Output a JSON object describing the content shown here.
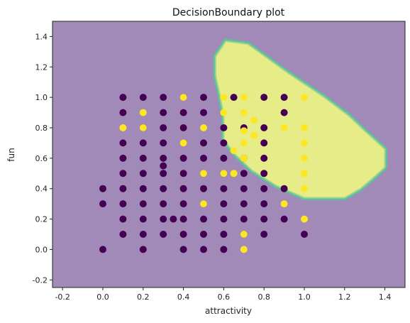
{
  "chart_data": {
    "type": "scatter",
    "title": "DecisionBoundary plot",
    "xlabel": "attractivity",
    "ylabel": "fun",
    "xlim": [
      -0.25,
      1.5
    ],
    "ylim": [
      -0.25,
      1.5
    ],
    "xticks": [
      "-0.2",
      "0.0",
      "0.2",
      "0.4",
      "0.6",
      "0.8",
      "1.0",
      "1.2",
      "1.4"
    ],
    "yticks": [
      "-0.2",
      "0.0",
      "0.2",
      "0.4",
      "0.6",
      "0.8",
      "1.0",
      "1.2",
      "1.4"
    ],
    "grid": false,
    "colors": {
      "background_region": "#a28ab8",
      "decision_region": "#e6ec88",
      "region_edge": "#5fbea0",
      "class_0": "#440154",
      "class_1": "#fde725"
    },
    "decision_region": [
      [
        0.56,
        1.27
      ],
      [
        0.61,
        1.37
      ],
      [
        0.72,
        1.35
      ],
      [
        0.92,
        1.16
      ],
      [
        1.1,
        1.0
      ],
      [
        1.22,
        0.88
      ],
      [
        1.3,
        0.78
      ],
      [
        1.4,
        0.66
      ],
      [
        1.4,
        0.54
      ],
      [
        1.35,
        0.48
      ],
      [
        1.28,
        0.4
      ],
      [
        1.2,
        0.34
      ],
      [
        1.0,
        0.34
      ],
      [
        0.86,
        0.42
      ],
      [
        0.74,
        0.52
      ],
      [
        0.66,
        0.62
      ],
      [
        0.6,
        0.72
      ],
      [
        0.6,
        0.88
      ],
      [
        0.58,
        1.02
      ],
      [
        0.56,
        1.14
      ]
    ],
    "points_class_0": [
      [
        0.1,
        1.0
      ],
      [
        0.2,
        1.0
      ],
      [
        0.3,
        1.0
      ],
      [
        0.4,
        1.0
      ],
      [
        0.5,
        1.0
      ],
      [
        0.8,
        1.0
      ],
      [
        0.9,
        1.0
      ],
      [
        0.65,
        1.0
      ],
      [
        0.1,
        0.9
      ],
      [
        0.3,
        0.9
      ],
      [
        0.4,
        0.9
      ],
      [
        0.5,
        0.9
      ],
      [
        0.9,
        0.9
      ],
      [
        0.2,
        0.8
      ],
      [
        0.3,
        0.8
      ],
      [
        0.4,
        0.8
      ],
      [
        0.6,
        0.8
      ],
      [
        0.7,
        0.8
      ],
      [
        0.8,
        0.8
      ],
      [
        0.1,
        0.7
      ],
      [
        0.2,
        0.7
      ],
      [
        0.3,
        0.7
      ],
      [
        0.4,
        0.7
      ],
      [
        0.5,
        0.7
      ],
      [
        0.6,
        0.7
      ],
      [
        0.8,
        0.7
      ],
      [
        0.1,
        0.6
      ],
      [
        0.2,
        0.6
      ],
      [
        0.3,
        0.6
      ],
      [
        0.4,
        0.6
      ],
      [
        0.5,
        0.6
      ],
      [
        0.6,
        0.6
      ],
      [
        0.7,
        0.6
      ],
      [
        0.8,
        0.6
      ],
      [
        0.3,
        0.55
      ],
      [
        0.1,
        0.5
      ],
      [
        0.2,
        0.5
      ],
      [
        0.3,
        0.5
      ],
      [
        0.4,
        0.5
      ],
      [
        0.5,
        0.5
      ],
      [
        0.6,
        0.5
      ],
      [
        0.7,
        0.5
      ],
      [
        0.8,
        0.5
      ],
      [
        0.0,
        0.4
      ],
      [
        0.1,
        0.4
      ],
      [
        0.2,
        0.4
      ],
      [
        0.3,
        0.4
      ],
      [
        0.4,
        0.4
      ],
      [
        0.5,
        0.4
      ],
      [
        0.6,
        0.4
      ],
      [
        0.7,
        0.4
      ],
      [
        0.8,
        0.4
      ],
      [
        0.9,
        0.4
      ],
      [
        0.0,
        0.3
      ],
      [
        0.1,
        0.3
      ],
      [
        0.2,
        0.3
      ],
      [
        0.3,
        0.3
      ],
      [
        0.4,
        0.3
      ],
      [
        0.5,
        0.3
      ],
      [
        0.6,
        0.3
      ],
      [
        0.7,
        0.3
      ],
      [
        0.8,
        0.3
      ],
      [
        0.1,
        0.2
      ],
      [
        0.2,
        0.2
      ],
      [
        0.3,
        0.2
      ],
      [
        0.35,
        0.2
      ],
      [
        0.4,
        0.2
      ],
      [
        0.5,
        0.2
      ],
      [
        0.6,
        0.2
      ],
      [
        0.7,
        0.2
      ],
      [
        0.8,
        0.2
      ],
      [
        0.9,
        0.2
      ],
      [
        0.1,
        0.1
      ],
      [
        0.2,
        0.1
      ],
      [
        0.3,
        0.1
      ],
      [
        0.4,
        0.1
      ],
      [
        0.5,
        0.1
      ],
      [
        0.6,
        0.1
      ],
      [
        0.7,
        0.1
      ],
      [
        0.8,
        0.1
      ],
      [
        1.0,
        0.1
      ],
      [
        0.0,
        0.0
      ],
      [
        0.2,
        0.0
      ],
      [
        0.4,
        0.0
      ],
      [
        0.5,
        0.0
      ],
      [
        0.6,
        0.0
      ]
    ],
    "points_class_1": [
      [
        0.4,
        1.0
      ],
      [
        0.6,
        1.0
      ],
      [
        0.7,
        1.0
      ],
      [
        1.0,
        1.0
      ],
      [
        0.2,
        0.9
      ],
      [
        0.6,
        0.9
      ],
      [
        0.7,
        0.9
      ],
      [
        0.75,
        0.85
      ],
      [
        0.1,
        0.8
      ],
      [
        0.2,
        0.8
      ],
      [
        0.5,
        0.8
      ],
      [
        0.9,
        0.8
      ],
      [
        1.0,
        0.8
      ],
      [
        0.7,
        0.78
      ],
      [
        0.75,
        0.75
      ],
      [
        0.4,
        0.7
      ],
      [
        0.7,
        0.7
      ],
      [
        1.0,
        0.7
      ],
      [
        0.65,
        0.65
      ],
      [
        1.0,
        0.6
      ],
      [
        0.7,
        0.6
      ],
      [
        0.5,
        0.5
      ],
      [
        0.6,
        0.5
      ],
      [
        0.65,
        0.5
      ],
      [
        1.0,
        0.5
      ],
      [
        1.0,
        0.4
      ],
      [
        0.5,
        0.3
      ],
      [
        0.9,
        0.3
      ],
      [
        1.0,
        0.2
      ],
      [
        0.7,
        0.1
      ],
      [
        0.7,
        0.0
      ]
    ]
  }
}
